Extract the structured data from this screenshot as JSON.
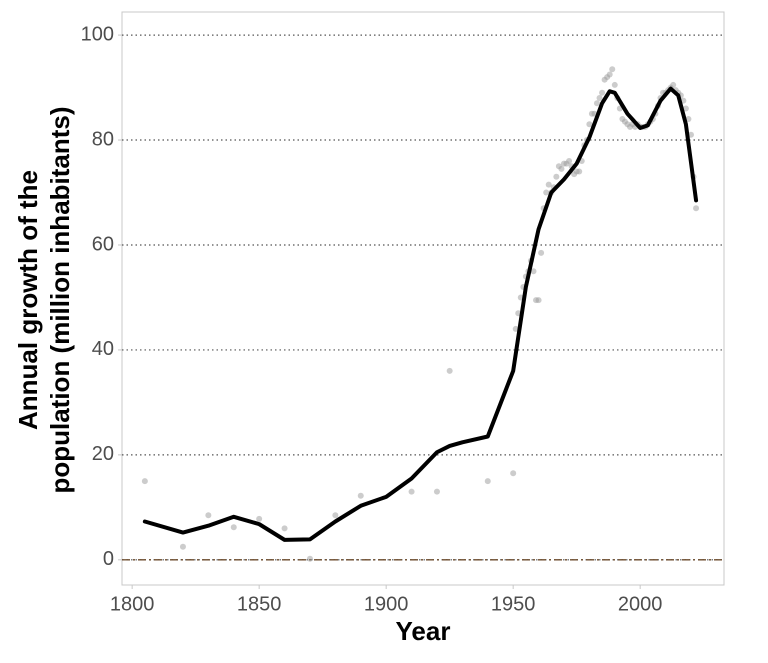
{
  "chart_data": {
    "type": "scatter",
    "xlabel": "Year",
    "ylabel": [
      "Annual growth of the",
      "population (million inhabitants)"
    ],
    "xlim": [
      1796,
      2033
    ],
    "xticks": [
      1800,
      1850,
      1900,
      1950,
      2000
    ],
    "ylim": [
      -4.8,
      104.4
    ],
    "yticks": [
      0,
      20,
      40,
      60,
      80,
      100
    ],
    "grid": "y",
    "reference_line": {
      "value": 0,
      "color": "#6b4a2b"
    },
    "series": [
      {
        "type": "scatter",
        "color": "#9a9a9a",
        "x": [
          1805,
          1820,
          1830,
          1840,
          1850,
          1860,
          1870,
          1880,
          1890,
          1910,
          1920,
          1925,
          1940,
          1950,
          1951,
          1952,
          1953,
          1954,
          1955,
          1956,
          1957,
          1958,
          1959,
          1960,
          1961,
          1962,
          1963,
          1964,
          1965,
          1966,
          1967,
          1968,
          1969,
          1970,
          1971,
          1972,
          1973,
          1974,
          1975,
          1976,
          1977,
          1978,
          1979,
          1980,
          1981,
          1982,
          1983,
          1984,
          1985,
          1986,
          1987,
          1988,
          1989,
          1990,
          1991,
          1992,
          1993,
          1994,
          1995,
          1996,
          1997,
          1998,
          1999,
          2000,
          2001,
          2002,
          2003,
          2004,
          2005,
          2006,
          2007,
          2008,
          2009,
          2010,
          2011,
          2012,
          2013,
          2014,
          2015,
          2016,
          2017,
          2018,
          2019,
          2020,
          2021,
          2022
        ],
        "values": [
          15,
          2.5,
          8.5,
          6.2,
          7.8,
          6,
          0.2,
          8.5,
          12.2,
          13,
          13,
          36,
          15,
          16.5,
          44,
          47,
          50,
          52,
          54,
          55,
          57,
          55,
          49.5,
          49.5,
          58.5,
          67,
          70,
          71.5,
          70,
          71,
          73,
          75,
          74.5,
          75.5,
          75.5,
          76,
          75,
          73.5,
          74,
          74,
          76,
          79,
          80,
          83,
          85,
          85,
          87,
          88,
          89,
          91.5,
          92,
          92.5,
          93.5,
          90.5,
          88,
          86,
          84,
          83.5,
          83,
          82.5,
          83,
          82.5,
          83,
          82.5,
          82.5,
          82.5,
          83,
          83.5,
          84,
          85,
          86.5,
          88,
          89,
          89,
          89.5,
          90,
          90.5,
          89.5,
          89,
          88.5,
          87.5,
          86,
          84,
          81,
          73,
          67
        ]
      },
      {
        "type": "line",
        "color": "#000000",
        "x": [
          1805,
          1820,
          1830,
          1840,
          1850,
          1860,
          1870,
          1880,
          1890,
          1900,
          1910,
          1920,
          1925,
          1930,
          1940,
          1950,
          1955,
          1960,
          1965,
          1970,
          1975,
          1980,
          1985,
          1988,
          1990,
          1995,
          2000,
          2003,
          2008,
          2012,
          2015,
          2018,
          2022
        ],
        "values": [
          7.3,
          5.2,
          6.5,
          8.2,
          6.8,
          3.8,
          3.9,
          7.3,
          10.3,
          12,
          15.5,
          20.5,
          21.7,
          22.4,
          23.5,
          36,
          52,
          63,
          70,
          72.5,
          75.5,
          80.5,
          87,
          89.3,
          89,
          85,
          82.3,
          82.8,
          87.5,
          89.8,
          88.5,
          83,
          68.5
        ]
      }
    ]
  }
}
